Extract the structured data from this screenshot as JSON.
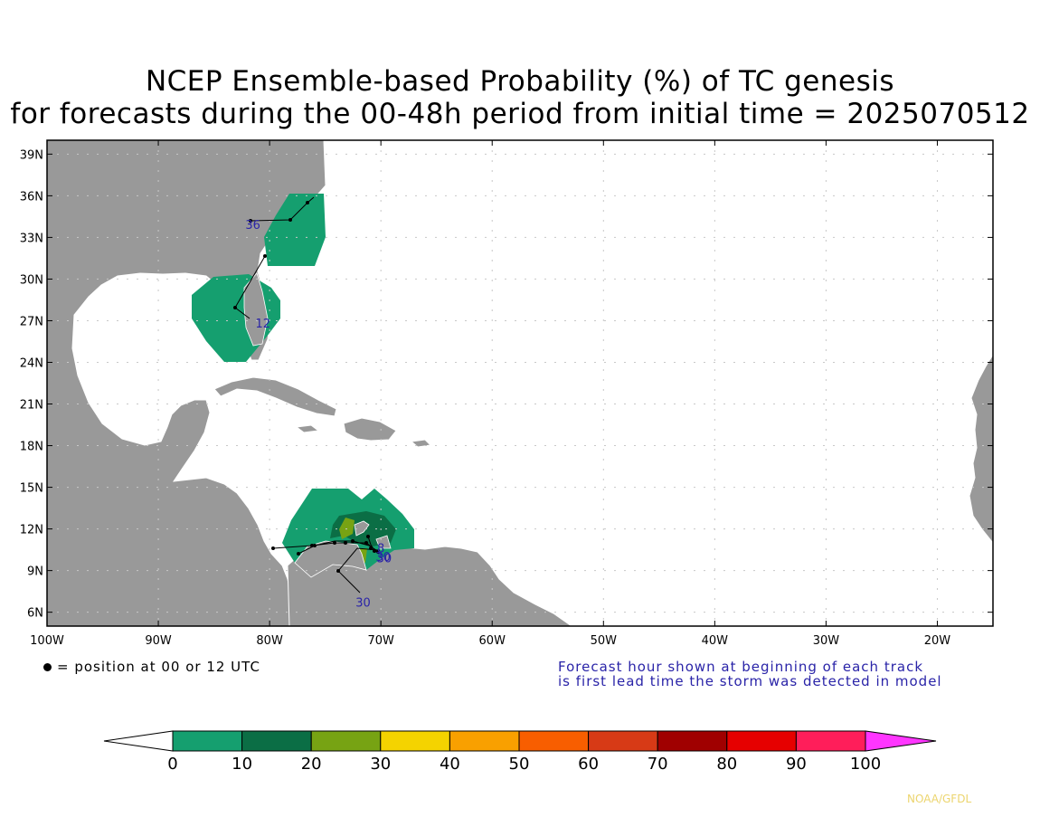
{
  "title": {
    "line1": "NCEP Ensemble-based Probability (%) of TC genesis",
    "line2": "for forecasts during the 00-48h period from initial time = 2025070512"
  },
  "axes": {
    "lat_labels": [
      "39N",
      "36N",
      "33N",
      "30N",
      "27N",
      "24N",
      "21N",
      "18N",
      "15N",
      "12N",
      "9N",
      "6N"
    ],
    "lat_values": [
      39,
      36,
      33,
      30,
      27,
      24,
      21,
      18,
      15,
      12,
      9,
      6
    ],
    "lon_labels": [
      "100W",
      "90W",
      "80W",
      "70W",
      "60W",
      "50W",
      "40W",
      "30W",
      "20W"
    ],
    "lon_values": [
      -100,
      -90,
      -80,
      -70,
      -60,
      -50,
      -40,
      -30,
      -20
    ]
  },
  "tracks": {
    "labels": [
      {
        "text": "36",
        "lon": -81.5,
        "lat": 33.6
      },
      {
        "text": "12",
        "lon": -80.6,
        "lat": 26.5
      },
      {
        "text": "8",
        "lon": -70.0,
        "lat": 10.3
      },
      {
        "text": "30",
        "lon": -69.8,
        "lat": 9.7
      },
      {
        "text": "30",
        "lon": -69.7,
        "lat": 9.6
      },
      {
        "text": "30",
        "lon": -71.6,
        "lat": 6.4
      }
    ],
    "label_color": "#2a24a8"
  },
  "legend": {
    "position_note": "= position at 00 or 12 UTC",
    "forecast_note_1": "Forecast hour shown at beginning of each track",
    "forecast_note_2": "is first lead time the storm was detected in model"
  },
  "colorbar": {
    "ticks": [
      "0",
      "10",
      "20",
      "30",
      "40",
      "50",
      "60",
      "70",
      "80",
      "90",
      "100"
    ],
    "colors": [
      "#159f6f",
      "#0b6e45",
      "#77a313",
      "#f4d300",
      "#f9a000",
      "#f85e00",
      "#d73a16",
      "#a00000",
      "#e60000",
      "#ff1e5a"
    ],
    "low_color": "#ffffff",
    "high_color": "#ff36ff"
  },
  "credit": "NOAA/GFDL",
  "colors": {
    "land": "#999999",
    "prob_10": "#159f6f",
    "prob_20": "#0b6e45",
    "prob_30": "#77a313",
    "track": "#000000"
  }
}
